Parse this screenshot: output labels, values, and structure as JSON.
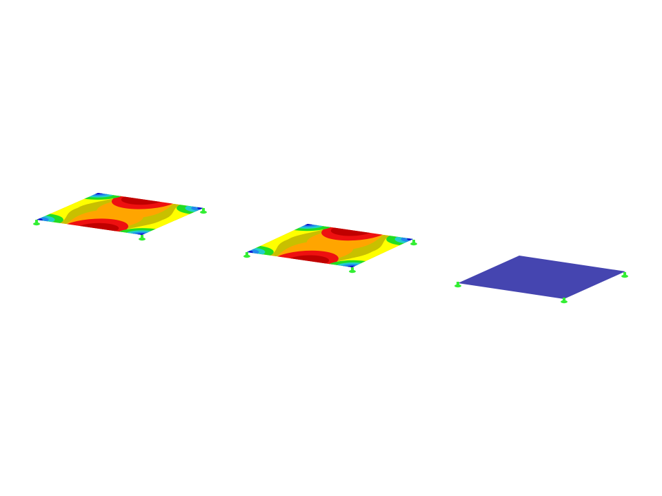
{
  "viewport": {
    "background": "#ffffff"
  },
  "plates": [
    {
      "id": "plate-1",
      "display": "contour"
    },
    {
      "id": "plate-2",
      "display": "contour"
    },
    {
      "id": "plate-3",
      "display": "uniform",
      "color": "#4545b0"
    }
  ],
  "contour_colors": {
    "center": "#ffa500",
    "red": "#ee1010",
    "dark_red": "#c00000",
    "olive": "#c8c000",
    "yellow": "#ffff00",
    "green": "#22dd22",
    "cyan": "#22cccc",
    "light_blue": "#2288ee",
    "blue": "#1010cc"
  },
  "support_color": "#33ee33",
  "support_icon": "support-icon"
}
